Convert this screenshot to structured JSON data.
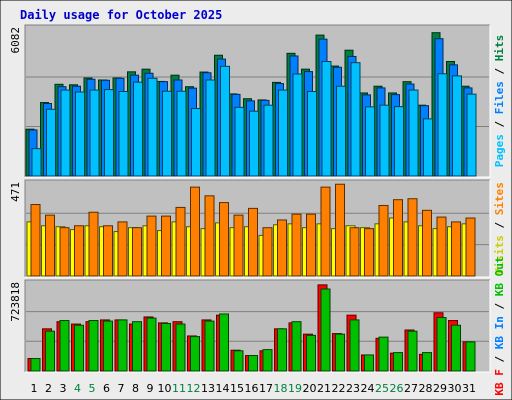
{
  "chart_data": {
    "type": "bar",
    "title": "Daily usage for October 2025",
    "colors": {
      "background": "#ececec",
      "panel": "#c0c0c0",
      "title": "#0000cc",
      "hits": "#008040",
      "files": "#0080ff",
      "pages": "#00c0ff",
      "visits": "#ffff00",
      "sites": "#ff8000",
      "kbin": "#ff0000",
      "kbout": "#00c000",
      "weekend_day": "#008040",
      "weekday": "#000000"
    },
    "days": [
      "1",
      "2",
      "3",
      "4",
      "5",
      "6",
      "7",
      "8",
      "9",
      "10",
      "11",
      "12",
      "13",
      "14",
      "15",
      "16",
      "17",
      "18",
      "19",
      "20",
      "21",
      "22",
      "23",
      "24",
      "25",
      "26",
      "27",
      "28",
      "29",
      "30",
      "31"
    ],
    "weekend_days": [
      4,
      5,
      11,
      12,
      18,
      19,
      25,
      26
    ],
    "panels": [
      {
        "id": "pages-files-hits",
        "max_label": "6082",
        "ymax": 6082,
        "side_label": [
          {
            "text": "Pages",
            "color": "#00c0ff"
          },
          {
            "text": " / ",
            "color": "#000000"
          },
          {
            "text": "Files",
            "color": "#0080ff"
          },
          {
            "text": " / ",
            "color": "#000000"
          },
          {
            "text": "Hits",
            "color": "#008040"
          }
        ],
        "series": [
          {
            "name": "Hits",
            "color": "#008040",
            "values": [
              1950,
              3060,
              3820,
              3800,
              4080,
              4000,
              4080,
              4340,
              4450,
              3940,
              4200,
              3720,
              4330,
              5030,
              3420,
              3220,
              3170,
              3900,
              5110,
              4450,
              5870,
              4580,
              5240,
              3460,
              3740,
              3460,
              3930,
              2950,
              5970,
              4770,
              3740
            ]
          },
          {
            "name": "Files",
            "color": "#0080ff",
            "values": [
              1920,
              3020,
              3720,
              3740,
              4030,
              3990,
              4070,
              4200,
              4280,
              3930,
              4000,
              3660,
              4300,
              4870,
              3400,
              3130,
              3150,
              3850,
              5000,
              4350,
              5700,
              4530,
              4980,
              3380,
              3670,
              3390,
              3830,
              2930,
              5720,
              4630,
              3670
            ]
          },
          {
            "name": "Pages",
            "color": "#00c0ff",
            "values": [
              1140,
              2780,
              3580,
              3500,
              3580,
              3600,
              3520,
              3910,
              4070,
              3530,
              3530,
              2810,
              4000,
              4570,
              2860,
              2700,
              2950,
              3580,
              4250,
              3520,
              4770,
              3740,
              4720,
              2880,
              2950,
              2890,
              3580,
              2380,
              4260,
              4170,
              3410
            ]
          }
        ]
      },
      {
        "id": "visits-sites",
        "max_label": "471",
        "ymax": 471,
        "side_label": [
          {
            "text": "Visits",
            "color": "#cccc00"
          },
          {
            "text": " / ",
            "color": "#000000"
          },
          {
            "text": "Sites",
            "color": "#ff8000"
          }
        ],
        "series": [
          {
            "name": "Visits",
            "color": "#ffff00",
            "values": [
              280,
              260,
              255,
              240,
              260,
              255,
              230,
              250,
              260,
              235,
              280,
              255,
              245,
              275,
              250,
              255,
              210,
              265,
              270,
              250,
              270,
              245,
              260,
              250,
              270,
              300,
              280,
              260,
              245,
              255,
              270
            ]
          },
          {
            "name": "Sites",
            "color": "#ff8000",
            "values": [
              370,
              315,
              250,
              260,
              330,
              260,
              280,
              250,
              310,
              310,
              355,
              460,
              415,
              380,
              315,
              350,
              250,
              290,
              320,
              320,
              460,
              475,
              250,
              245,
              365,
              395,
              400,
              340,
              305,
              280,
              300
            ]
          }
        ]
      },
      {
        "id": "kbin-kbout",
        "max_label": "723818",
        "ymax": 723818,
        "side_label": [
          {
            "text": "KB F",
            "color": "#ff0000"
          },
          {
            "text": " / ",
            "color": "#000000"
          },
          {
            "text": "KB In",
            "color": "#0080ff"
          },
          {
            "text": " / ",
            "color": "#000000"
          },
          {
            "text": "KB Out",
            "color": "#00c000"
          }
        ],
        "series": [
          {
            "name": "KB In",
            "color": "#ff0000",
            "values": [
              105000,
              355000,
              415000,
              395000,
              415000,
              430000,
              430000,
              395000,
              455000,
              405000,
              415000,
              295000,
              430000,
              470000,
              175000,
              130000,
              170000,
              355000,
              405000,
              310000,
              725000,
              315000,
              470000,
              135000,
              275000,
              150000,
              345000,
              140000,
              490000,
              425000,
              245000
            ]
          },
          {
            "name": "KB Out",
            "color": "#00c000",
            "values": [
              105000,
              335000,
              425000,
              385000,
              425000,
              420000,
              430000,
              415000,
              445000,
              400000,
              395000,
              290000,
              420000,
              480000,
              170000,
              130000,
              180000,
              355000,
              415000,
              300000,
              690000,
              310000,
              430000,
              135000,
              285000,
              155000,
              335000,
              155000,
              450000,
              385000,
              245000
            ]
          }
        ]
      }
    ]
  }
}
